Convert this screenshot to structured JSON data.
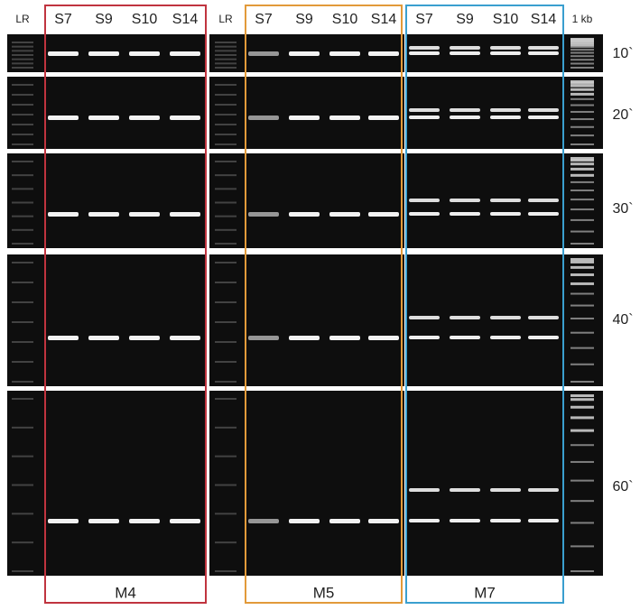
{
  "lane_headers": [
    "LR",
    "S7",
    "S9",
    "S10",
    "S14",
    "LR",
    "S7",
    "S9",
    "S10",
    "S14",
    "S7",
    "S9",
    "S10",
    "S14",
    "1 kb"
  ],
  "times": [
    "10`",
    "20`",
    "30`",
    "40`",
    "60`"
  ],
  "groups": [
    "M4",
    "M5",
    "M7"
  ]
}
